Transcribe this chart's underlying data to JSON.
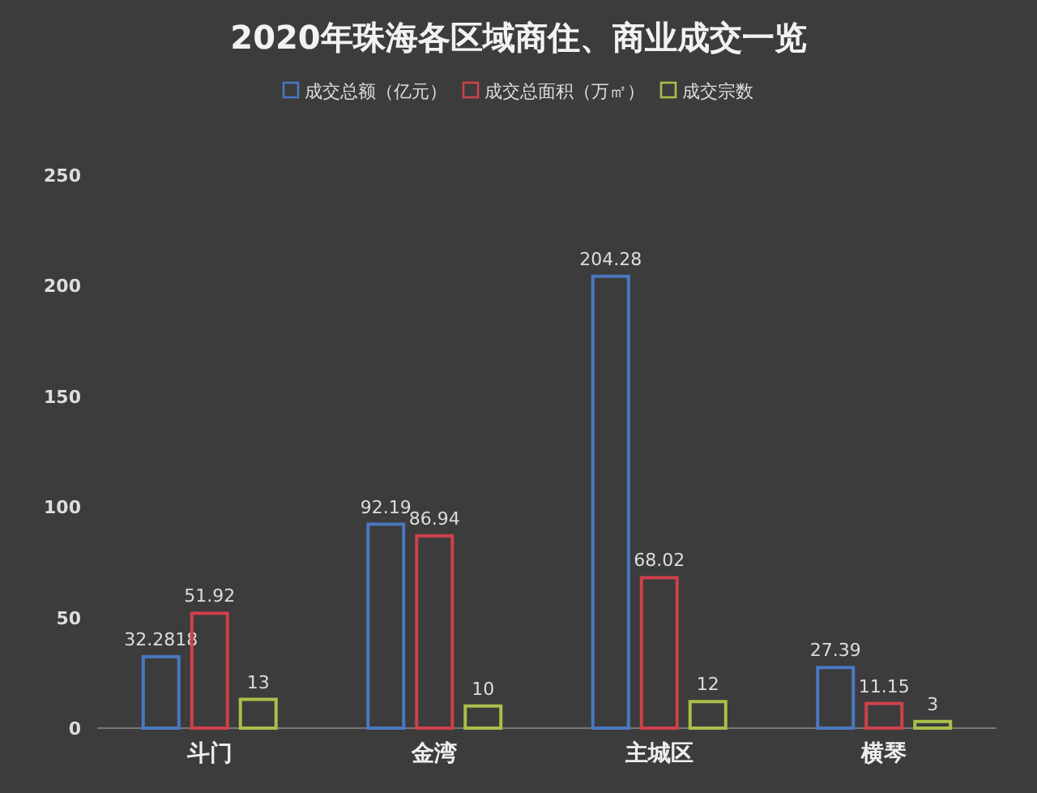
{
  "chart_data": {
    "type": "bar",
    "title": "2020年珠海各区域商住、商业成交一览",
    "categories": [
      "斗门",
      "金湾",
      "主城区",
      "横琴"
    ],
    "series": [
      {
        "name": "成交总额（亿元）",
        "color": "#4a78c0",
        "values": [
          32.2818,
          92.19,
          204.28,
          27.39
        ]
      },
      {
        "name": "成交总面积（万㎡）",
        "color": "#d0404a",
        "values": [
          51.92,
          86.94,
          68.02,
          11.15
        ]
      },
      {
        "name": "成交宗数",
        "color": "#a8c04a",
        "values": [
          13,
          10,
          12,
          3
        ]
      }
    ],
    "ylim": [
      0,
      250
    ],
    "yticks": [
      0,
      50,
      100,
      150,
      200,
      250
    ],
    "legend": "top",
    "data_labels": true,
    "grid": false
  }
}
